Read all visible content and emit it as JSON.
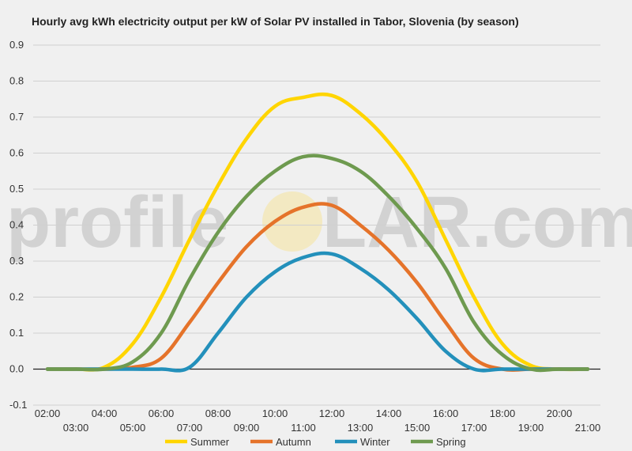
{
  "chart_data": {
    "type": "line",
    "title": "Hourly avg kWh electricity output per kW of Solar PV installed in Tabor, Slovenia (by season)",
    "watermark": {
      "before": "profile",
      "after": "LAR.com"
    },
    "x": [
      "02:00",
      "03:00",
      "04:00",
      "05:00",
      "06:00",
      "07:00",
      "08:00",
      "09:00",
      "10:00",
      "11:00",
      "12:00",
      "13:00",
      "14:00",
      "15:00",
      "16:00",
      "17:00",
      "18:00",
      "19:00",
      "20:00",
      "21:00"
    ],
    "x_ticks_top": [
      "02:00",
      "04:00",
      "06:00",
      "08:00",
      "10:00",
      "12:00",
      "14:00",
      "16:00",
      "18:00",
      "20:00"
    ],
    "x_ticks_bottom": [
      "03:00",
      "05:00",
      "07:00",
      "09:00",
      "11:00",
      "13:00",
      "15:00",
      "17:00",
      "19:00",
      "21:00"
    ],
    "ylim": [
      -0.1,
      0.9
    ],
    "y_ticks": [
      "-0.1",
      "0.0",
      "0.1",
      "0.2",
      "0.3",
      "0.4",
      "0.5",
      "0.6",
      "0.7",
      "0.8",
      "0.9"
    ],
    "grid": true,
    "legend_position": "bottom",
    "series": [
      {
        "name": "Summer",
        "color": "#ffd500",
        "values": [
          0,
          0,
          0.005,
          0.07,
          0.2,
          0.36,
          0.51,
          0.64,
          0.73,
          0.755,
          0.76,
          0.71,
          0.63,
          0.52,
          0.36,
          0.2,
          0.07,
          0.01,
          0,
          0
        ]
      },
      {
        "name": "Autumn",
        "color": "#e5732a",
        "values": [
          0,
          0,
          0,
          0.005,
          0.03,
          0.13,
          0.24,
          0.34,
          0.41,
          0.45,
          0.455,
          0.4,
          0.33,
          0.24,
          0.13,
          0.03,
          0,
          0,
          0,
          0
        ]
      },
      {
        "name": "Winter",
        "color": "#2390bb",
        "values": [
          0,
          0,
          0,
          0,
          0,
          0.005,
          0.1,
          0.2,
          0.27,
          0.31,
          0.32,
          0.28,
          0.22,
          0.14,
          0.05,
          0,
          0,
          0,
          0,
          0
        ]
      },
      {
        "name": "Spring",
        "color": "#6e9a4f",
        "values": [
          0,
          0,
          0,
          0.02,
          0.1,
          0.25,
          0.38,
          0.48,
          0.55,
          0.59,
          0.585,
          0.55,
          0.48,
          0.39,
          0.28,
          0.13,
          0.04,
          0,
          0,
          0
        ]
      }
    ]
  }
}
